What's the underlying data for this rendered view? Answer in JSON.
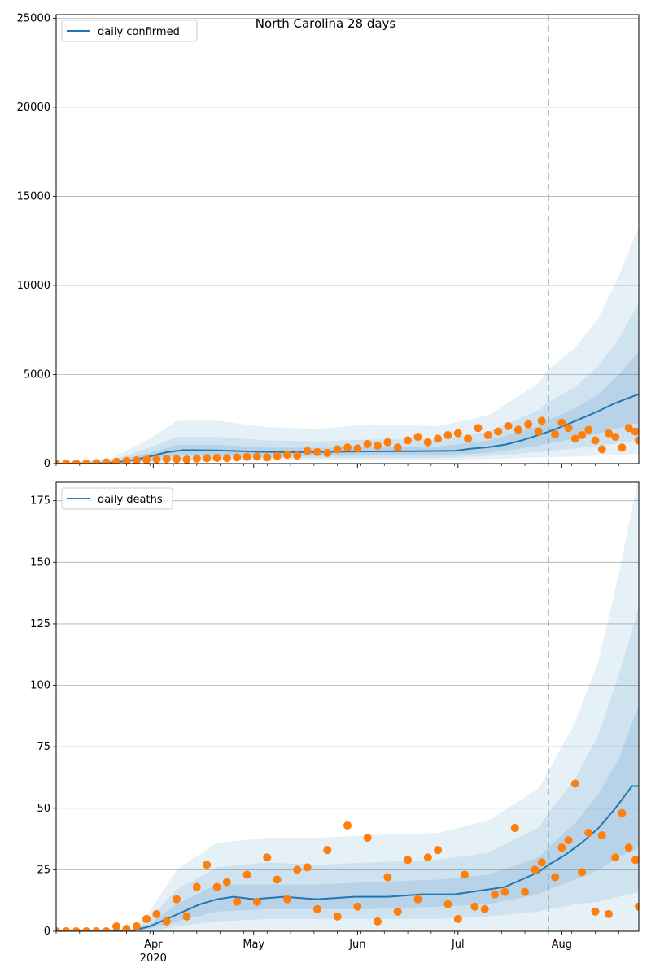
{
  "title": "North Carolina 28 days",
  "colors": {
    "model": "#1f77b4",
    "observed": "#ff7f0e",
    "band": "#1f77b4",
    "forecast_line": "#5f9ea0",
    "grid": "#b0b0b0"
  },
  "chart_data": [
    {
      "type": "line",
      "legend": "daily confirmed",
      "legend_position": "top-left",
      "grid": "y",
      "x_ticks": [
        {
          "label": "Apr",
          "sub": "2020"
        },
        {
          "label": "May",
          "sub": ""
        },
        {
          "label": "Jun",
          "sub": ""
        },
        {
          "label": "Jul",
          "sub": ""
        },
        {
          "label": "Aug",
          "sub": ""
        }
      ],
      "y_ticks": [
        "0",
        "5000",
        "10000",
        "15000",
        "20000",
        "25000"
      ],
      "ylim": [
        0,
        25200
      ],
      "x_range": [
        "2020-03-03",
        "2020-08-24"
      ],
      "forecast_start": "2020-07-28",
      "model_line": [
        [
          "2020-03-03",
          0
        ],
        [
          "2020-03-15",
          0
        ],
        [
          "2020-03-20",
          60
        ],
        [
          "2020-03-25",
          160
        ],
        [
          "2020-03-31",
          400
        ],
        [
          "2020-04-05",
          640
        ],
        [
          "2020-04-10",
          760
        ],
        [
          "2020-04-20",
          740
        ],
        [
          "2020-04-30",
          680
        ],
        [
          "2020-05-10",
          640
        ],
        [
          "2020-05-20",
          650
        ],
        [
          "2020-05-31",
          680
        ],
        [
          "2020-06-10",
          690
        ],
        [
          "2020-06-20",
          700
        ],
        [
          "2020-06-30",
          720
        ],
        [
          "2020-07-05",
          840
        ],
        [
          "2020-07-10",
          920
        ],
        [
          "2020-07-15",
          1060
        ],
        [
          "2020-07-20",
          1300
        ],
        [
          "2020-07-25",
          1600
        ],
        [
          "2020-07-28",
          1790
        ],
        [
          "2020-08-02",
          2150
        ],
        [
          "2020-08-07",
          2550
        ],
        [
          "2020-08-12",
          2950
        ],
        [
          "2020-08-17",
          3400
        ],
        [
          "2020-08-24",
          3900
        ]
      ],
      "band_outer": [
        [
          "2020-03-03",
          0,
          0
        ],
        [
          "2020-03-20",
          0,
          350
        ],
        [
          "2020-03-31",
          0,
          1400
        ],
        [
          "2020-04-08",
          150,
          2400
        ],
        [
          "2020-04-20",
          150,
          2400
        ],
        [
          "2020-05-05",
          170,
          2050
        ],
        [
          "2020-05-20",
          200,
          1950
        ],
        [
          "2020-06-05",
          200,
          2200
        ],
        [
          "2020-06-25",
          200,
          2100
        ],
        [
          "2020-07-10",
          250,
          2700
        ],
        [
          "2020-07-25",
          350,
          4500
        ],
        [
          "2020-07-28",
          350,
          5300
        ],
        [
          "2020-08-05",
          400,
          6500
        ],
        [
          "2020-08-12",
          450,
          8200
        ],
        [
          "2020-08-18",
          500,
          10500
        ],
        [
          "2020-08-24",
          550,
          13300
        ]
      ],
      "band_mid": [
        [
          "2020-03-03",
          0,
          0
        ],
        [
          "2020-03-20",
          20,
          200
        ],
        [
          "2020-03-31",
          150,
          900
        ],
        [
          "2020-04-08",
          280,
          1500
        ],
        [
          "2020-04-20",
          290,
          1500
        ],
        [
          "2020-05-05",
          300,
          1300
        ],
        [
          "2020-05-20",
          300,
          1250
        ],
        [
          "2020-06-05",
          300,
          1350
        ],
        [
          "2020-06-25",
          310,
          1350
        ],
        [
          "2020-07-10",
          420,
          1800
        ],
        [
          "2020-07-25",
          650,
          3000
        ],
        [
          "2020-07-28",
          700,
          3450
        ],
        [
          "2020-08-05",
          850,
          4300
        ],
        [
          "2020-08-12",
          1000,
          5500
        ],
        [
          "2020-08-18",
          1150,
          7000
        ],
        [
          "2020-08-24",
          1300,
          9000
        ]
      ],
      "band_inner": [
        [
          "2020-03-03",
          0,
          0
        ],
        [
          "2020-03-20",
          40,
          120
        ],
        [
          "2020-03-31",
          250,
          600
        ],
        [
          "2020-04-08",
          450,
          1050
        ],
        [
          "2020-04-20",
          460,
          1050
        ],
        [
          "2020-05-05",
          440,
          900
        ],
        [
          "2020-05-20",
          440,
          880
        ],
        [
          "2020-06-05",
          450,
          950
        ],
        [
          "2020-06-25",
          460,
          950
        ],
        [
          "2020-07-10",
          600,
          1300
        ],
        [
          "2020-07-25",
          1000,
          2100
        ],
        [
          "2020-07-28",
          1150,
          2450
        ],
        [
          "2020-08-05",
          1400,
          3100
        ],
        [
          "2020-08-12",
          1700,
          3900
        ],
        [
          "2020-08-18",
          2000,
          5000
        ],
        [
          "2020-08-24",
          2300,
          6300
        ]
      ],
      "observed": [
        [
          "2020-03-03",
          0
        ],
        [
          "2020-03-06",
          0
        ],
        [
          "2020-03-09",
          0
        ],
        [
          "2020-03-12",
          0
        ],
        [
          "2020-03-15",
          30
        ],
        [
          "2020-03-18",
          60
        ],
        [
          "2020-03-21",
          100
        ],
        [
          "2020-03-24",
          150
        ],
        [
          "2020-03-27",
          180
        ],
        [
          "2020-03-30",
          220
        ],
        [
          "2020-04-02",
          240
        ],
        [
          "2020-04-05",
          260
        ],
        [
          "2020-04-08",
          250
        ],
        [
          "2020-04-11",
          230
        ],
        [
          "2020-04-14",
          280
        ],
        [
          "2020-04-17",
          300
        ],
        [
          "2020-04-20",
          320
        ],
        [
          "2020-04-23",
          310
        ],
        [
          "2020-04-26",
          350
        ],
        [
          "2020-04-29",
          380
        ],
        [
          "2020-05-02",
          400
        ],
        [
          "2020-05-05",
          350
        ],
        [
          "2020-05-08",
          430
        ],
        [
          "2020-05-11",
          500
        ],
        [
          "2020-05-14",
          450
        ],
        [
          "2020-05-17",
          700
        ],
        [
          "2020-05-20",
          650
        ],
        [
          "2020-05-23",
          600
        ],
        [
          "2020-05-26",
          800
        ],
        [
          "2020-05-29",
          900
        ],
        [
          "2020-06-01",
          850
        ],
        [
          "2020-06-04",
          1100
        ],
        [
          "2020-06-07",
          1000
        ],
        [
          "2020-06-10",
          1200
        ],
        [
          "2020-06-13",
          900
        ],
        [
          "2020-06-16",
          1300
        ],
        [
          "2020-06-19",
          1500
        ],
        [
          "2020-06-22",
          1200
        ],
        [
          "2020-06-25",
          1400
        ],
        [
          "2020-06-28",
          1600
        ],
        [
          "2020-07-01",
          1700
        ],
        [
          "2020-07-04",
          1400
        ],
        [
          "2020-07-07",
          2000
        ],
        [
          "2020-07-10",
          1600
        ],
        [
          "2020-07-13",
          1800
        ],
        [
          "2020-07-16",
          2100
        ],
        [
          "2020-07-19",
          1900
        ],
        [
          "2020-07-22",
          2200
        ],
        [
          "2020-07-25",
          1800
        ],
        [
          "2020-07-26",
          2400
        ],
        [
          "2020-07-30",
          1650
        ],
        [
          "2020-08-01",
          2300
        ],
        [
          "2020-08-03",
          2000
        ],
        [
          "2020-08-05",
          1400
        ],
        [
          "2020-08-07",
          1600
        ],
        [
          "2020-08-09",
          1900
        ],
        [
          "2020-08-11",
          1300
        ],
        [
          "2020-08-13",
          800
        ],
        [
          "2020-08-15",
          1700
        ],
        [
          "2020-08-17",
          1500
        ],
        [
          "2020-08-19",
          900
        ],
        [
          "2020-08-21",
          2000
        ],
        [
          "2020-08-23",
          1800
        ],
        [
          "2020-08-24",
          1300
        ]
      ]
    },
    {
      "type": "line",
      "legend": "daily deaths",
      "legend_position": "top-left",
      "grid": "y",
      "x_ticks": [
        {
          "label": "Apr",
          "sub": "2020"
        },
        {
          "label": "May",
          "sub": ""
        },
        {
          "label": "Jun",
          "sub": ""
        },
        {
          "label": "Jul",
          "sub": ""
        },
        {
          "label": "Aug",
          "sub": ""
        }
      ],
      "y_ticks": [
        "0",
        "25",
        "50",
        "75",
        "100",
        "125",
        "150",
        "175"
      ],
      "ylim": [
        0,
        182.5
      ],
      "x_range": [
        "2020-03-03",
        "2020-08-24"
      ],
      "forecast_start": "2020-07-28",
      "model_line": [
        [
          "2020-03-03",
          0
        ],
        [
          "2020-03-25",
          0
        ],
        [
          "2020-03-31",
          2
        ],
        [
          "2020-04-05",
          5
        ],
        [
          "2020-04-10",
          8
        ],
        [
          "2020-04-15",
          11
        ],
        [
          "2020-04-20",
          13
        ],
        [
          "2020-04-25",
          14
        ],
        [
          "2020-05-01",
          13
        ],
        [
          "2020-05-10",
          14
        ],
        [
          "2020-05-20",
          13
        ],
        [
          "2020-05-31",
          14
        ],
        [
          "2020-06-10",
          14
        ],
        [
          "2020-06-20",
          15
        ],
        [
          "2020-06-30",
          15
        ],
        [
          "2020-07-05",
          16
        ],
        [
          "2020-07-10",
          17
        ],
        [
          "2020-07-15",
          18
        ],
        [
          "2020-07-20",
          21
        ],
        [
          "2020-07-25",
          24
        ],
        [
          "2020-07-28",
          27
        ],
        [
          "2020-08-02",
          31
        ],
        [
          "2020-08-07",
          36
        ],
        [
          "2020-08-12",
          42
        ],
        [
          "2020-08-17",
          50
        ],
        [
          "2020-08-22",
          59
        ],
        [
          "2020-08-24",
          59
        ]
      ],
      "band_outer": [
        [
          "2020-03-03",
          0,
          0
        ],
        [
          "2020-03-25",
          0,
          0
        ],
        [
          "2020-03-31",
          0,
          8
        ],
        [
          "2020-04-08",
          0,
          25
        ],
        [
          "2020-04-20",
          0,
          36
        ],
        [
          "2020-05-05",
          0,
          38
        ],
        [
          "2020-05-20",
          0,
          38
        ],
        [
          "2020-06-05",
          0,
          39
        ],
        [
          "2020-06-25",
          0,
          40
        ],
        [
          "2020-07-10",
          0,
          45
        ],
        [
          "2020-07-25",
          0,
          58
        ],
        [
          "2020-07-28",
          0,
          65
        ],
        [
          "2020-08-05",
          0,
          85
        ],
        [
          "2020-08-12",
          0,
          110
        ],
        [
          "2020-08-18",
          0,
          145
        ],
        [
          "2020-08-24",
          0,
          185
        ]
      ],
      "band_mid": [
        [
          "2020-03-03",
          0,
          0
        ],
        [
          "2020-03-25",
          0,
          0
        ],
        [
          "2020-03-31",
          0,
          5
        ],
        [
          "2020-04-08",
          2,
          17
        ],
        [
          "2020-04-20",
          4,
          26
        ],
        [
          "2020-05-05",
          5,
          28
        ],
        [
          "2020-05-20",
          5,
          27
        ],
        [
          "2020-06-05",
          5,
          28
        ],
        [
          "2020-06-25",
          5,
          29
        ],
        [
          "2020-07-10",
          6,
          32
        ],
        [
          "2020-07-25",
          8,
          42
        ],
        [
          "2020-07-28",
          9,
          48
        ],
        [
          "2020-08-05",
          11,
          62
        ],
        [
          "2020-08-12",
          12,
          80
        ],
        [
          "2020-08-18",
          14,
          104
        ],
        [
          "2020-08-24",
          16,
          132
        ]
      ],
      "band_inner": [
        [
          "2020-03-03",
          0,
          0
        ],
        [
          "2020-03-25",
          0,
          0
        ],
        [
          "2020-03-31",
          1,
          3
        ],
        [
          "2020-04-08",
          4,
          11
        ],
        [
          "2020-04-20",
          8,
          19
        ],
        [
          "2020-05-05",
          9,
          19
        ],
        [
          "2020-05-20",
          9,
          19
        ],
        [
          "2020-06-05",
          9,
          20
        ],
        [
          "2020-06-25",
          10,
          21
        ],
        [
          "2020-07-10",
          11,
          23
        ],
        [
          "2020-07-25",
          15,
          30
        ],
        [
          "2020-07-28",
          17,
          34
        ],
        [
          "2020-08-05",
          21,
          44
        ],
        [
          "2020-08-12",
          25,
          56
        ],
        [
          "2020-08-18",
          30,
          70
        ],
        [
          "2020-08-24",
          34,
          92
        ]
      ],
      "observed": [
        [
          "2020-03-03",
          0
        ],
        [
          "2020-03-06",
          0
        ],
        [
          "2020-03-09",
          0
        ],
        [
          "2020-03-12",
          0
        ],
        [
          "2020-03-15",
          0
        ],
        [
          "2020-03-18",
          0
        ],
        [
          "2020-03-21",
          2
        ],
        [
          "2020-03-24",
          1
        ],
        [
          "2020-03-27",
          2
        ],
        [
          "2020-03-30",
          5
        ],
        [
          "2020-04-02",
          7
        ],
        [
          "2020-04-05",
          4
        ],
        [
          "2020-04-08",
          13
        ],
        [
          "2020-04-11",
          6
        ],
        [
          "2020-04-14",
          18
        ],
        [
          "2020-04-17",
          27
        ],
        [
          "2020-04-20",
          18
        ],
        [
          "2020-04-23",
          20
        ],
        [
          "2020-04-26",
          12
        ],
        [
          "2020-04-29",
          23
        ],
        [
          "2020-05-02",
          12
        ],
        [
          "2020-05-05",
          30
        ],
        [
          "2020-05-08",
          21
        ],
        [
          "2020-05-11",
          13
        ],
        [
          "2020-05-14",
          25
        ],
        [
          "2020-05-17",
          26
        ],
        [
          "2020-05-20",
          9
        ],
        [
          "2020-05-23",
          33
        ],
        [
          "2020-05-26",
          6
        ],
        [
          "2020-05-29",
          43
        ],
        [
          "2020-06-01",
          10
        ],
        [
          "2020-06-04",
          38
        ],
        [
          "2020-06-07",
          4
        ],
        [
          "2020-06-10",
          22
        ],
        [
          "2020-06-13",
          8
        ],
        [
          "2020-06-16",
          29
        ],
        [
          "2020-06-19",
          13
        ],
        [
          "2020-06-22",
          30
        ],
        [
          "2020-06-25",
          33
        ],
        [
          "2020-06-28",
          11
        ],
        [
          "2020-07-01",
          5
        ],
        [
          "2020-07-03",
          23
        ],
        [
          "2020-07-06",
          10
        ],
        [
          "2020-07-09",
          9
        ],
        [
          "2020-07-12",
          15
        ],
        [
          "2020-07-15",
          16
        ],
        [
          "2020-07-18",
          42
        ],
        [
          "2020-07-21",
          16
        ],
        [
          "2020-07-24",
          25
        ],
        [
          "2020-07-26",
          28
        ],
        [
          "2020-07-30",
          22
        ],
        [
          "2020-08-01",
          34
        ],
        [
          "2020-08-03",
          37
        ],
        [
          "2020-08-05",
          60
        ],
        [
          "2020-08-07",
          24
        ],
        [
          "2020-08-09",
          40
        ],
        [
          "2020-08-11",
          8
        ],
        [
          "2020-08-13",
          39
        ],
        [
          "2020-08-15",
          7
        ],
        [
          "2020-08-17",
          30
        ],
        [
          "2020-08-19",
          48
        ],
        [
          "2020-08-21",
          34
        ],
        [
          "2020-08-23",
          29
        ],
        [
          "2020-08-24",
          10
        ]
      ]
    }
  ]
}
